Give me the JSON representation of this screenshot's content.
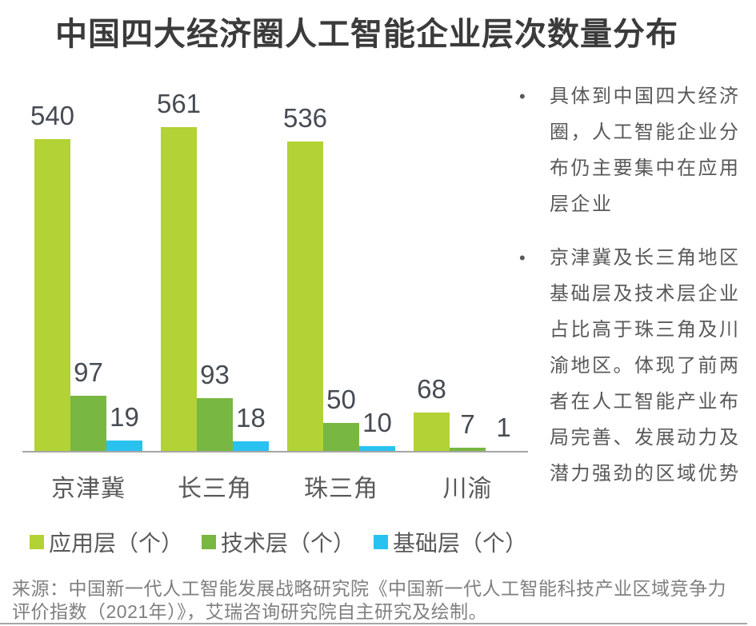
{
  "title": "中国四大经济圈人工智能企业层次数量分布",
  "chart_data": {
    "type": "bar",
    "title": "中国四大经济圈人工智能企业层次数量分布",
    "categories": [
      "京津冀",
      "长三角",
      "珠三角",
      "川渝"
    ],
    "series": [
      {
        "name": "应用层（个）",
        "color": "#b2d235",
        "values": [
          540,
          561,
          536,
          68
        ]
      },
      {
        "name": "技术层（个）",
        "color": "#78b742",
        "values": [
          97,
          93,
          50,
          7
        ]
      },
      {
        "name": "基础层（个）",
        "color": "#29c2f0",
        "values": [
          19,
          18,
          10,
          1
        ]
      }
    ],
    "xlabel": "",
    "ylabel": "",
    "ylim": [
      0,
      561
    ],
    "grid": false,
    "value_labels": true,
    "legend_position": "bottom",
    "axis_line_color": "#a6a6a6"
  },
  "notes": {
    "bullet_glyph": "•",
    "bullets": [
      {
        "text": "具体到中国四大经济圈，人工智能企业分布仍主要集中在应用层企业",
        "lines": [
          "具体到中国四大经济",
          "圈，人工智能企业分",
          "布仍主要集中在应用",
          "层企业"
        ]
      },
      {
        "text": "京津冀及长三角地区基础层及技术层企业占比高于珠三角及川渝地区。体现了前两者在人工智能产业布局完善、发展动力及潜力强劲的区域优势",
        "lines": [
          "京津冀及长三角地区",
          "基础层及技术层企业",
          "占比高于珠三角及川",
          "渝地区。体现了前两",
          "者在人工智能产业布",
          "局完善、发展动力及",
          "潜力强劲的区域优势"
        ]
      }
    ]
  },
  "source": {
    "text": "来源：中国新一代人工智能发展战略研究院《中国新一代人工智能科技产业区域竞争力评价指数（2021年）》，艾瑞咨询研究院自主研究及绘制。",
    "lines": [
      "来源：中国新一代人工智能发展战略研究院《中国新一代人工智能科技产业区域竞争力",
      "评价指数（2021年）》，艾瑞咨询研究院自主研究及绘制。"
    ]
  },
  "colors": {
    "title_text": "#3b3b3b",
    "value_label_text": "#464b53",
    "axis_text": "#595959",
    "source_text": "#7f7f7f",
    "axis_line": "#a6a6a6",
    "series_applied": "#b2d235",
    "series_tech": "#78b742",
    "series_base": "#29c2f0"
  }
}
